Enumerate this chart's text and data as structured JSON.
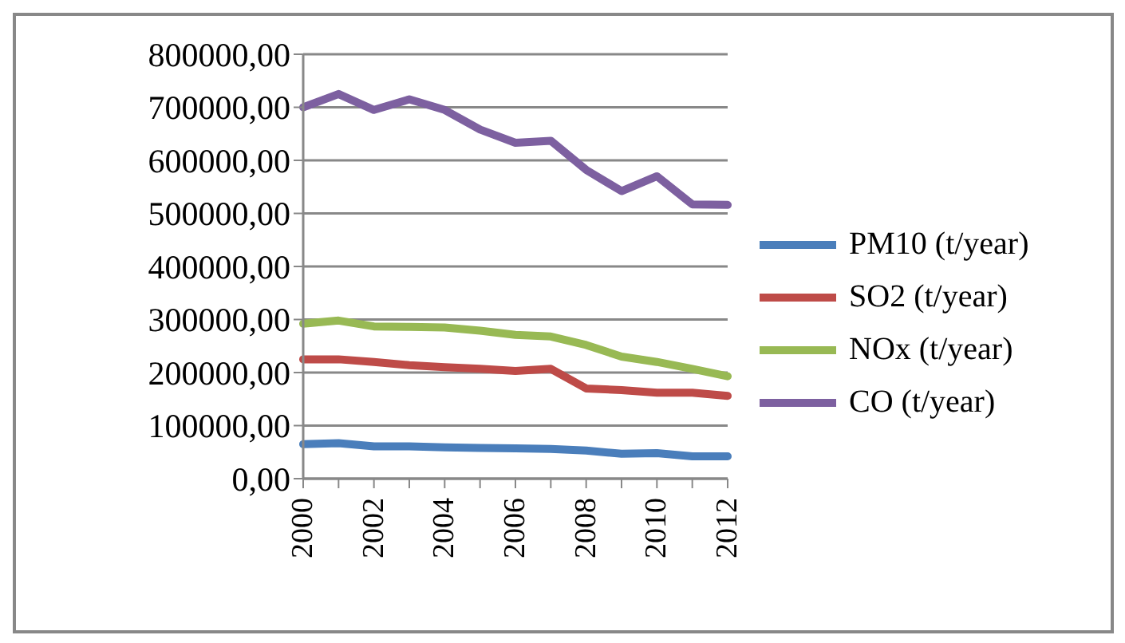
{
  "chart_data": {
    "type": "line",
    "categories": [
      "2000",
      null,
      "2002",
      null,
      "2004",
      null,
      "2006",
      null,
      "2008",
      null,
      "2010",
      null,
      "2012"
    ],
    "series": [
      {
        "name": "PM10 (t/year)",
        "color": "#4a7ebb",
        "values": [
          65000,
          67000,
          61000,
          61000,
          59000,
          58000,
          57000,
          56000,
          53000,
          47000,
          48000,
          42000,
          42000
        ]
      },
      {
        "name": "SO2 (t/year)",
        "color": "#be4b48",
        "values": [
          225000,
          225000,
          220000,
          214000,
          210000,
          207000,
          203000,
          207000,
          170000,
          167000,
          162000,
          162000,
          156000
        ]
      },
      {
        "name": "NOx (t/year)",
        "color": "#98b954",
        "values": [
          292000,
          298000,
          287000,
          286000,
          285000,
          279000,
          271000,
          268000,
          252000,
          230000,
          220000,
          207000,
          193000
        ]
      },
      {
        "name": "CO (t/year)",
        "color": "#7d60a0",
        "values": [
          700000,
          725000,
          695000,
          715000,
          695000,
          658000,
          633000,
          637000,
          582000,
          542000,
          570000,
          517000,
          516000
        ]
      }
    ],
    "ylim": [
      0,
      800000
    ],
    "yticks": [
      {
        "value": 0,
        "label": "0,00"
      },
      {
        "value": 100000,
        "label": "100000,00"
      },
      {
        "value": 200000,
        "label": "200000,00"
      },
      {
        "value": 300000,
        "label": "300000,00"
      },
      {
        "value": 400000,
        "label": "400000,00"
      },
      {
        "value": 500000,
        "label": "500000,00"
      },
      {
        "value": 600000,
        "label": "600000,00"
      },
      {
        "value": 700000,
        "label": "700000,00"
      },
      {
        "value": 800000,
        "label": "800000,00"
      }
    ],
    "grid": "y",
    "legend": "right",
    "marker": "none",
    "line_style": "solid"
  }
}
